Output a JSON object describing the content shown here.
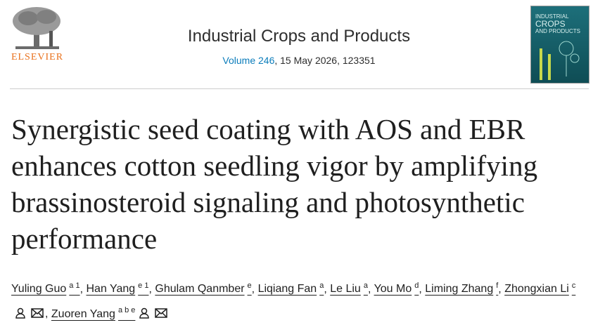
{
  "header": {
    "publisher": "ELSEVIER",
    "journal": "Industrial Crops and Products",
    "volume": "Volume 246",
    "issue_info": ", 15 May 2026, 123351",
    "cover": {
      "lines": [
        "INDUSTRIAL",
        "CROPS",
        "AND PRODUCTS"
      ]
    }
  },
  "article": {
    "title": "Synergistic seed coating with AOS and EBR enhances cotton seedling vigor by amplifying brassinosteroid signaling and photosynthetic performance",
    "author_separator": ",",
    "authors": [
      {
        "name": "Yuling Guo",
        "affiliations": "a 1"
      },
      {
        "name": "Han Yang",
        "affiliations": "e 1"
      },
      {
        "name": "Ghulam Qanmber",
        "affiliations": "e"
      },
      {
        "name": "Liqiang Fan",
        "affiliations": "a"
      },
      {
        "name": "Le Liu",
        "affiliations": "a"
      },
      {
        "name": "You Mo",
        "affiliations": "d"
      },
      {
        "name": "Liming Zhang",
        "affiliations": "f"
      },
      {
        "name": "Zhongxian Li",
        "affiliations": "c"
      },
      {
        "name": "Zuoren Yang",
        "affiliations": "a b e"
      }
    ]
  }
}
